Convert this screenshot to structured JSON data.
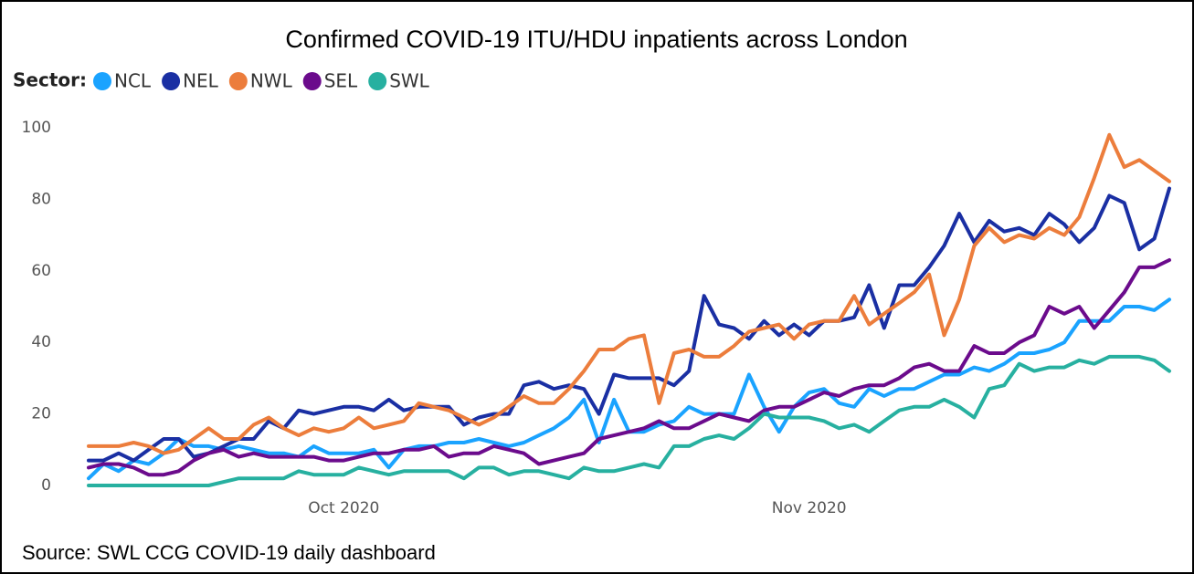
{
  "chart_data": {
    "type": "line",
    "title": "Confirmed COVID-19 ITU/HDU inpatients across London",
    "legend_title": "Sector:",
    "source": "Source: SWL CCG COVID-19 daily dashboard",
    "categories": [
      null,
      null,
      null,
      null,
      null,
      null,
      null,
      null,
      null,
      null,
      null,
      null,
      null,
      null,
      null,
      null,
      null,
      "Oct 2020",
      null,
      null,
      null,
      null,
      null,
      null,
      null,
      null,
      null,
      null,
      null,
      null,
      null,
      null,
      null,
      null,
      null,
      null,
      null,
      null,
      null,
      null,
      null,
      null,
      null,
      null,
      null,
      null,
      null,
      null,
      "Nov 2020",
      null,
      null,
      null,
      null,
      null,
      null,
      null,
      null,
      null,
      null,
      null,
      null,
      null,
      null,
      null,
      null,
      null,
      null,
      null,
      null,
      null,
      null,
      null,
      null
    ],
    "series": [
      {
        "name": "NCL",
        "color": "#1aa3ff",
        "values": [
          2,
          6,
          4,
          7,
          6,
          9,
          13,
          11,
          11,
          10,
          11,
          10,
          9,
          9,
          8,
          11,
          9,
          9,
          9,
          10,
          5,
          10,
          11,
          11,
          12,
          12,
          13,
          12,
          11,
          12,
          14,
          16,
          19,
          24,
          12,
          24,
          15,
          15,
          17,
          18,
          22,
          20,
          20,
          20,
          31,
          22,
          15,
          22,
          26,
          27,
          23,
          22,
          27,
          25,
          27,
          27,
          29,
          31,
          31,
          33,
          32,
          34,
          37,
          37,
          38,
          40,
          46,
          46,
          46,
          50,
          50,
          49,
          52
        ]
      },
      {
        "name": "NEL",
        "color": "#1a2fa3",
        "values": [
          7,
          7,
          9,
          7,
          10,
          13,
          13,
          8,
          9,
          11,
          13,
          13,
          18,
          16,
          21,
          20,
          21,
          22,
          22,
          21,
          24,
          21,
          22,
          22,
          22,
          17,
          19,
          20,
          20,
          28,
          29,
          27,
          28,
          27,
          20,
          31,
          30,
          30,
          30,
          28,
          32,
          53,
          45,
          44,
          41,
          46,
          42,
          45,
          42,
          46,
          46,
          47,
          56,
          44,
          56,
          56,
          61,
          67,
          76,
          68,
          74,
          71,
          72,
          70,
          76,
          73,
          68,
          72,
          81,
          79,
          66,
          69,
          83
        ]
      },
      {
        "name": "NWL",
        "color": "#ec7d3c",
        "values": [
          11,
          11,
          11,
          12,
          11,
          9,
          10,
          13,
          16,
          13,
          13,
          17,
          19,
          16,
          14,
          16,
          15,
          16,
          19,
          16,
          17,
          18,
          23,
          22,
          21,
          19,
          17,
          19,
          22,
          25,
          23,
          23,
          27,
          32,
          38,
          38,
          41,
          42,
          23,
          37,
          38,
          36,
          36,
          39,
          43,
          44,
          45,
          41,
          45,
          46,
          46,
          53,
          45,
          48,
          51,
          54,
          59,
          42,
          52,
          67,
          72,
          68,
          70,
          69,
          72,
          70,
          75,
          86,
          98,
          89,
          91,
          88,
          85
        ]
      },
      {
        "name": "SEL",
        "color": "#6b0b8c",
        "values": [
          5,
          6,
          6,
          5,
          3,
          3,
          4,
          7,
          9,
          10,
          8,
          9,
          8,
          8,
          8,
          8,
          7,
          7,
          8,
          9,
          9,
          10,
          10,
          11,
          8,
          9,
          9,
          11,
          10,
          9,
          6,
          7,
          8,
          9,
          13,
          14,
          15,
          16,
          18,
          16,
          16,
          18,
          20,
          19,
          18,
          21,
          22,
          22,
          24,
          26,
          25,
          27,
          28,
          28,
          30,
          33,
          34,
          32,
          32,
          39,
          37,
          37,
          40,
          42,
          50,
          48,
          50,
          44,
          49,
          54,
          61,
          61,
          63
        ]
      },
      {
        "name": "SWL",
        "color": "#27b0a0",
        "values": [
          0,
          0,
          0,
          0,
          0,
          0,
          0,
          0,
          0,
          1,
          2,
          2,
          2,
          2,
          4,
          3,
          3,
          3,
          5,
          4,
          3,
          4,
          4,
          4,
          4,
          2,
          5,
          5,
          3,
          4,
          4,
          3,
          2,
          5,
          4,
          4,
          5,
          6,
          5,
          11,
          11,
          13,
          14,
          13,
          16,
          20,
          19,
          19,
          19,
          18,
          16,
          17,
          15,
          18,
          21,
          22,
          22,
          24,
          22,
          19,
          27,
          28,
          34,
          32,
          33,
          33,
          35,
          34,
          36,
          36,
          36,
          35,
          32
        ]
      }
    ],
    "ylim": [
      0,
      100
    ],
    "yticks": [
      0,
      20,
      40,
      60,
      80,
      100
    ],
    "grid": false
  }
}
